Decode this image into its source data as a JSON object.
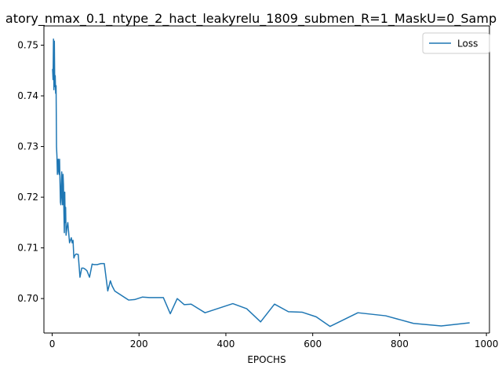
{
  "chart_data": {
    "type": "line",
    "title": "atory_nmax_0.1_ntype_2_hact_leakyrelu_1809_submen_R=1_MaskU=0_Samp",
    "xlabel": "EPOCHS",
    "ylabel": "",
    "xlim": [
      -19,
      1007
    ],
    "ylim": [
      0.6932,
      0.7538
    ],
    "xticks": [
      0,
      200,
      400,
      600,
      800,
      1000
    ],
    "yticks": [
      0.7,
      0.71,
      0.72,
      0.73,
      0.74,
      0.75
    ],
    "ytick_labels": [
      "0.70",
      "0.71",
      "0.72",
      "0.73",
      "0.74",
      "0.75"
    ],
    "grid": false,
    "legend_position": "top-right",
    "series": [
      {
        "name": "Loss",
        "color": "#1f77b4",
        "x": [
          1,
          2,
          3,
          4,
          5,
          6,
          7,
          8,
          9,
          10,
          11,
          12,
          13,
          14,
          15,
          16,
          17,
          18,
          19,
          20,
          21,
          22,
          23,
          24,
          25,
          26,
          27,
          28,
          29,
          30,
          31,
          32,
          34,
          36,
          38,
          40,
          42,
          44,
          46,
          48,
          50,
          52,
          55,
          60,
          64,
          68,
          72,
          76,
          80,
          86,
          92,
          96,
          104,
          112,
          120,
          128,
          134,
          138,
          144,
          176,
          190,
          208,
          224,
          256,
          272,
          288,
          304,
          320,
          352,
          416,
          448,
          480,
          512,
          544,
          576,
          608,
          640,
          704,
          768,
          832,
          896,
          960
        ],
        "y": [
          0.7452,
          0.7432,
          0.7512,
          0.7412,
          0.7508,
          0.7418,
          0.744,
          0.7405,
          0.742,
          0.73,
          0.728,
          0.7245,
          0.727,
          0.7275,
          0.725,
          0.7245,
          0.7275,
          0.723,
          0.719,
          0.7185,
          0.7225,
          0.725,
          0.72,
          0.7185,
          0.7245,
          0.7225,
          0.717,
          0.713,
          0.721,
          0.715,
          0.718,
          0.7125,
          0.714,
          0.715,
          0.713,
          0.711,
          0.7115,
          0.712,
          0.711,
          0.7115,
          0.708,
          0.7085,
          0.7088,
          0.7087,
          0.7042,
          0.706,
          0.706,
          0.7058,
          0.7055,
          0.7042,
          0.7068,
          0.7067,
          0.7067,
          0.7069,
          0.7069,
          0.7015,
          0.7035,
          0.7025,
          0.7015,
          0.6997,
          0.6998,
          0.7003,
          0.7002,
          0.7002,
          0.697,
          0.7,
          0.6988,
          0.6989,
          0.6972,
          0.699,
          0.698,
          0.6954,
          0.6989,
          0.6974,
          0.6973,
          0.6964,
          0.6945,
          0.6972,
          0.6966,
          0.6951,
          0.6946,
          0.6952
        ]
      }
    ]
  }
}
